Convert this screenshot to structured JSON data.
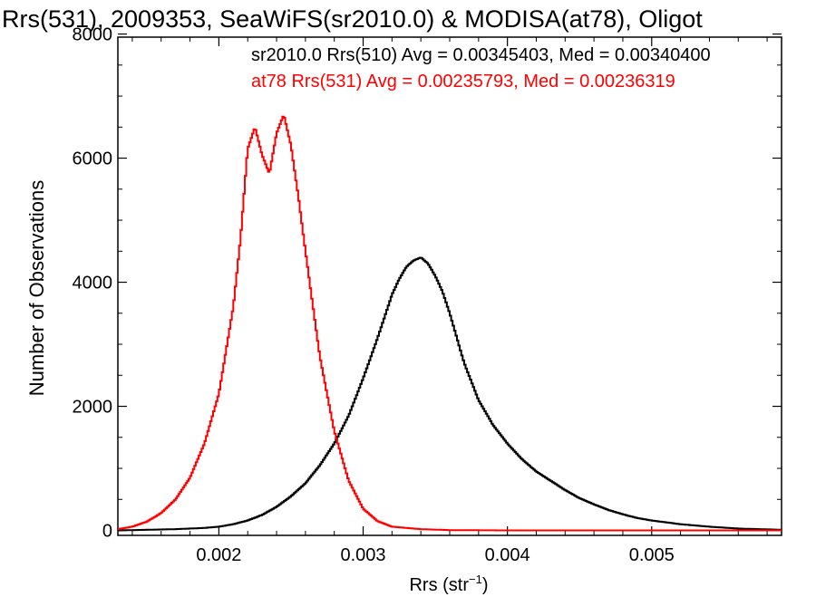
{
  "chart_data": {
    "type": "line",
    "title": "Rrs(531), 2009353, SeaWiFS(sr2010.0) & MODISA(at78), Oligot",
    "xlabel_main": "Rrs (str",
    "xlabel_sup": "−1",
    "xlabel_close": ")",
    "ylabel": "Number of Observations",
    "xlim": [
      0.0013,
      0.0059
    ],
    "ylim": [
      -80,
      7950
    ],
    "x_ticks": [
      {
        "value": 0.002,
        "label": "0.002"
      },
      {
        "value": 0.003,
        "label": "0.003"
      },
      {
        "value": 0.004,
        "label": "0.004"
      },
      {
        "value": 0.005,
        "label": "0.005"
      }
    ],
    "y_ticks": [
      {
        "value": 0,
        "label": "0"
      },
      {
        "value": 2000,
        "label": "2000"
      },
      {
        "value": 4000,
        "label": "4000"
      },
      {
        "value": 6000,
        "label": "6000"
      },
      {
        "value": 8000,
        "label": "8000"
      }
    ],
    "annotations": [
      {
        "text": "sr2010.0 Rrs(510) Avg = 0.00345403, Med = 0.00340400",
        "color": "#000000"
      },
      {
        "text": "at78 Rrs(531) Avg = 0.00235793, Med = 0.00236319",
        "color": "#ff0000"
      }
    ],
    "series": [
      {
        "color": "#000000",
        "x": [
          0.0013,
          0.0015,
          0.0017,
          0.0019,
          0.002,
          0.0021,
          0.0022,
          0.0023,
          0.0024,
          0.0025,
          0.0026,
          0.0027,
          0.0028,
          0.0029,
          0.003,
          0.0031,
          0.00315,
          0.0032,
          0.00325,
          0.0033,
          0.00335,
          0.0034,
          0.00345,
          0.0035,
          0.00355,
          0.0036,
          0.00365,
          0.0037,
          0.0038,
          0.0039,
          0.004,
          0.0041,
          0.0042,
          0.0043,
          0.0044,
          0.0045,
          0.0046,
          0.0047,
          0.0048,
          0.0049,
          0.005,
          0.0052,
          0.0054,
          0.0056,
          0.0059
        ],
        "y": [
          0,
          10,
          20,
          40,
          60,
          100,
          160,
          250,
          380,
          550,
          760,
          1050,
          1400,
          1850,
          2450,
          3100,
          3450,
          3800,
          4050,
          4250,
          4350,
          4400,
          4300,
          4100,
          3850,
          3500,
          3100,
          2700,
          2100,
          1700,
          1400,
          1150,
          950,
          800,
          650,
          520,
          420,
          330,
          260,
          200,
          160,
          100,
          60,
          30,
          10
        ]
      },
      {
        "color": "#ff0000",
        "x": [
          0.0013,
          0.0014,
          0.0015,
          0.0016,
          0.0017,
          0.0018,
          0.0019,
          0.002,
          0.0021,
          0.00215,
          0.0022,
          0.00225,
          0.0023,
          0.00235,
          0.0024,
          0.00245,
          0.0025,
          0.00255,
          0.0026,
          0.0027,
          0.0028,
          0.0029,
          0.003,
          0.0031,
          0.0032,
          0.0034,
          0.0036,
          0.004,
          0.0059
        ],
        "y": [
          20,
          60,
          140,
          280,
          500,
          850,
          1400,
          2200,
          3600,
          4700,
          6150,
          6500,
          6050,
          5750,
          6400,
          6700,
          6200,
          5400,
          4500,
          2800,
          1600,
          800,
          350,
          150,
          60,
          20,
          5,
          0,
          0
        ]
      }
    ]
  }
}
